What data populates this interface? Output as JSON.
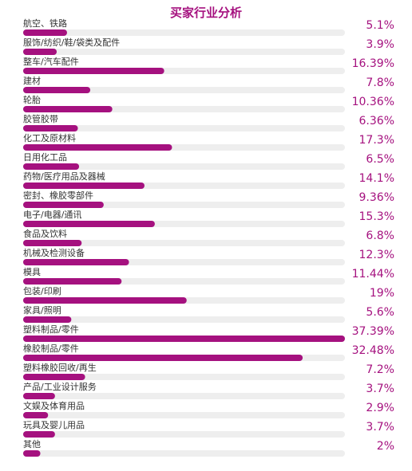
{
  "chart_data": {
    "type": "bar",
    "orientation": "horizontal",
    "title": "买家行业分析",
    "xlabel": "",
    "ylabel": "",
    "xlim": [
      0,
      37.39
    ],
    "grid": false,
    "legend": "none",
    "colors": {
      "bar": "#a5117f",
      "track": "#eeeeee",
      "value_text": "#a5117f",
      "label_text": "#333333"
    },
    "categories": [
      "航空、铁路",
      "服饰/纺织/鞋/袋类及配件",
      "整车/汽车配件",
      "建材",
      "轮胎",
      "胶管胶带",
      "化工及原材料",
      "日用化工品",
      "药物/医疗用品及器械",
      "密封、橡胶零部件",
      "电子/电器/通讯",
      "食品及饮料",
      "机械及检测设备",
      "模具",
      "包装/印刷",
      "家具/照明",
      "塑料制品/零件",
      "橡胶制品/零件",
      "塑料橡胶回收/再生",
      "产品/工业设计服务",
      "文娱及体育用品",
      "玩具及婴儿用品",
      "其他"
    ],
    "values": [
      5.1,
      3.9,
      16.39,
      7.8,
      10.36,
      6.36,
      17.3,
      6.5,
      14.1,
      9.36,
      15.3,
      6.8,
      12.3,
      11.44,
      19,
      5.6,
      37.39,
      32.48,
      7.2,
      3.7,
      2.9,
      3.7,
      2
    ],
    "value_labels": [
      "5.1%",
      "3.9%",
      "16.39%",
      "7.8%",
      "10.36%",
      "6.36%",
      "17.3%",
      "6.5%",
      "14.1%",
      "9.36%",
      "15.3%",
      "6.8%",
      "12.3%",
      "11.44%",
      "19%",
      "5.6%",
      "37.39%",
      "32.48%",
      "7.2%",
      "3.7%",
      "2.9%",
      "3.7%",
      "2%"
    ]
  }
}
